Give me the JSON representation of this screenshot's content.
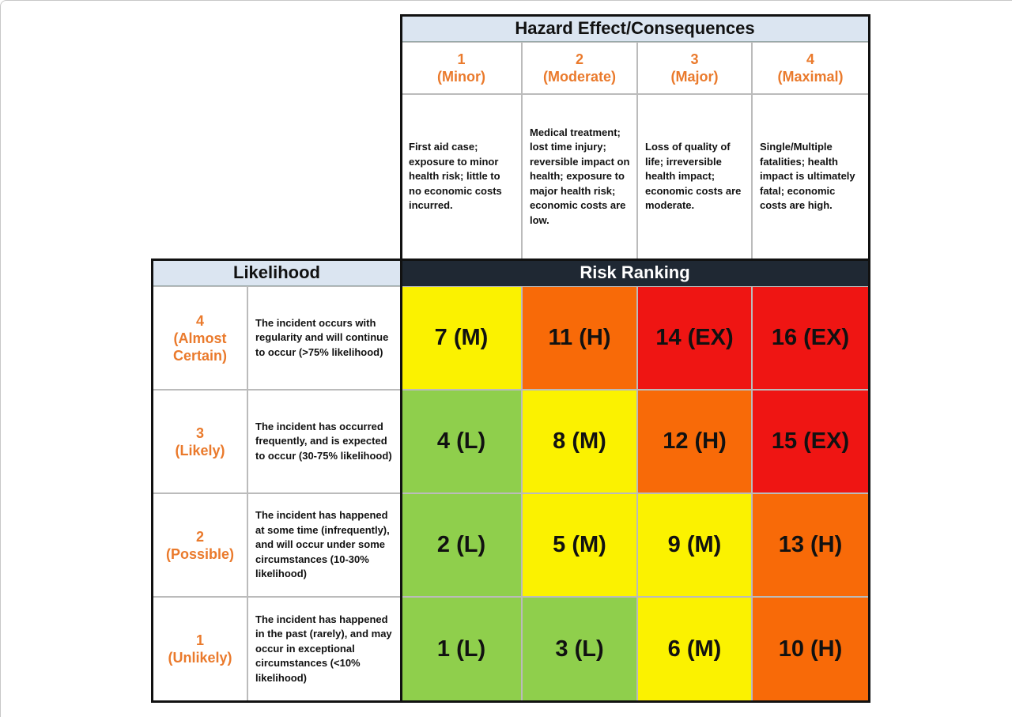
{
  "header": {
    "title": "Hazard Effect/Consequences"
  },
  "consequences": [
    {
      "number": "1",
      "name": "(Minor)",
      "description": "First aid case; exposure to minor health risk; little to no economic costs incurred."
    },
    {
      "number": "2",
      "name": "(Moderate)",
      "description": "Medical treatment; lost time injury; reversible impact on health; exposure to major health risk; economic costs are low."
    },
    {
      "number": "3",
      "name": "(Major)",
      "description": "Loss of quality of life; irreversible health impact; economic costs are moderate."
    },
    {
      "number": "4",
      "name": "(Maximal)",
      "description": "Single/Multiple fatalities; health impact is ultimately fatal; economic costs are high."
    }
  ],
  "likelihood_header": "Likelihood",
  "risk_header": "Risk Ranking",
  "likelihoods": [
    {
      "number": "4",
      "name": "(Almost Certain)",
      "description": "The incident occurs with regularity and will continue to occur (>75% likelihood)",
      "cells": [
        {
          "text": "7 (M)",
          "color": "#fbf200"
        },
        {
          "text": "11 (H)",
          "color": "#f86a08"
        },
        {
          "text": "14 (EX)",
          "color": "#ef1513"
        },
        {
          "text": "16 (EX)",
          "color": "#ef1513"
        }
      ]
    },
    {
      "number": "3",
      "name": "(Likely)",
      "description": "The incident has occurred frequently, and is expected to occur (30-75% likelihood)",
      "cells": [
        {
          "text": "4 (L)",
          "color": "#8fcf4c"
        },
        {
          "text": "8 (M)",
          "color": "#fbf200"
        },
        {
          "text": "12 (H)",
          "color": "#f86a08"
        },
        {
          "text": "15 (EX)",
          "color": "#ef1513"
        }
      ]
    },
    {
      "number": "2",
      "name": "(Possible)",
      "description": "The incident has happened at some time (infrequently), and will occur under some circumstances (10-30% likelihood)",
      "cells": [
        {
          "text": "2 (L)",
          "color": "#8fcf4c"
        },
        {
          "text": "5 (M)",
          "color": "#fbf200"
        },
        {
          "text": "9 (M)",
          "color": "#fbf200"
        },
        {
          "text": "13 (H)",
          "color": "#f86a08"
        }
      ]
    },
    {
      "number": "1",
      "name": "(Unlikely)",
      "description": "The incident has happened in the past (rarely), and may occur in exceptional circumstances (<10% likelihood)",
      "cells": [
        {
          "text": "1 (L)",
          "color": "#8fcf4c"
        },
        {
          "text": "3 (L)",
          "color": "#8fcf4c"
        },
        {
          "text": "6 (M)",
          "color": "#fbf200"
        },
        {
          "text": "10 (H)",
          "color": "#f86a08"
        }
      ]
    }
  ]
}
